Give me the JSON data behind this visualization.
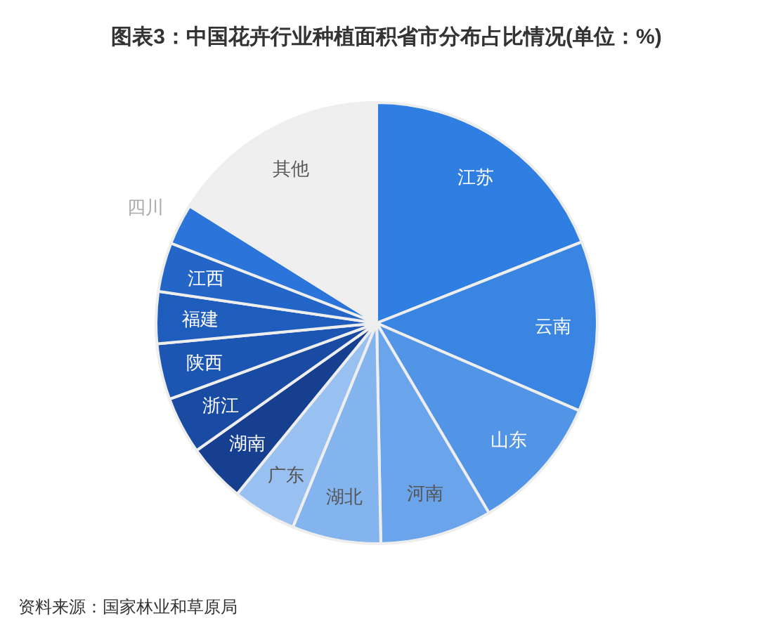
{
  "chart_data": {
    "type": "pie",
    "title": "图表3：中国花卉行业种植面积省市分布占比情况(单位：%)",
    "categories": [
      "江苏",
      "云南",
      "山东",
      "河南",
      "湖北",
      "广东",
      "湖南",
      "浙江",
      "陕西",
      "福建",
      "江西",
      "四川",
      "其他"
    ],
    "values": [
      19,
      12.5,
      10,
      8.2,
      6.5,
      4.7,
      4.3,
      4.2,
      4.1,
      3.8,
      3.6,
      3,
      16.1
    ],
    "colors": [
      "#2f7fe3",
      "#3a85e2",
      "#5294e6",
      "#6aa4ea",
      "#84b4ee",
      "#98c0f0",
      "#163f90",
      "#1a4ba2",
      "#1d55b2",
      "#1f5dbd",
      "#2466c8",
      "#2b74da",
      "#efefef"
    ],
    "annotations": [
      "资料来源：国家林业和草原局"
    ]
  }
}
